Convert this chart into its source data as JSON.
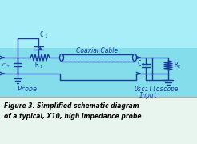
{
  "bg_schematic_top": "#7dd8e8",
  "bg_schematic_bottom": "#55c8d8",
  "bg_caption": "#e8f5ee",
  "caption_line1": "Figure 3. Simplified schematic diagram",
  "caption_line2": "of a typical, X10, high impedance probe",
  "label_probe": "Probe",
  "label_oscilloscope": "Oscilloscope",
  "label_input": "Input",
  "label_coaxial": "Coaxial Cable",
  "label_C1": "C1",
  "label_R1": "R1",
  "label_Cp": "C_tip",
  "label_C2": "C2",
  "label_RE": "RE",
  "wire_color": "#1a3a9c",
  "component_color": "#1a3a9c",
  "text_color_schematic": "#1a3a9c",
  "caption_color": "#000000",
  "figsize": [
    2.46,
    1.8
  ],
  "dpi": 100
}
